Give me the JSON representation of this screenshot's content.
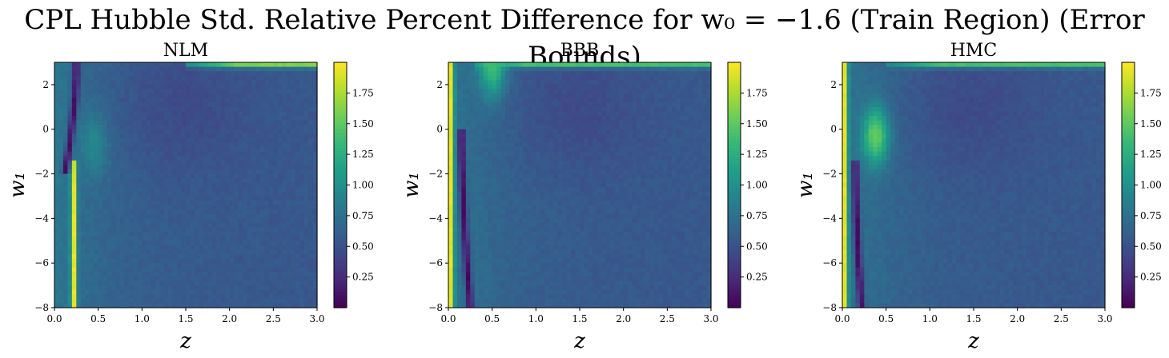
{
  "figure": {
    "title": "CPL Hubble Std. Relative Percent Difference for w₀ = −1.6 (Train Region) (Error Bounds)"
  },
  "chart_data": [
    {
      "type": "heatmap",
      "title": "NLM",
      "xlabel": "z",
      "ylabel": "w₁",
      "xlim": [
        0.0,
        3.0
      ],
      "ylim": [
        -8,
        3
      ],
      "xticks": [
        "0.0",
        "0.5",
        "1.0",
        "1.5",
        "2.0",
        "2.5",
        "3.0"
      ],
      "yticks": [
        "−8",
        "−6",
        "−4",
        "−2",
        "0",
        "2"
      ],
      "colormap": "viridis",
      "colorbar": {
        "range": [
          0.0,
          2.0
        ],
        "ticks": [
          "0.25",
          "0.50",
          "0.75",
          "1.00",
          "1.25",
          "1.50",
          "1.75"
        ]
      },
      "background_value": 0.55,
      "features": [
        {
          "kind": "band",
          "z_center": 0.22,
          "z_width": 0.05,
          "w1_from": -8,
          "w1_to": -1.5,
          "value": 1.95
        },
        {
          "kind": "arc",
          "z_at_w1_low": 0.12,
          "z_at_w1_high": 0.25,
          "w1_from": -2,
          "w1_to": 3,
          "value": 0.05
        },
        {
          "kind": "blob",
          "z": 0.45,
          "w1": -0.7,
          "value": 0.95
        },
        {
          "kind": "edge",
          "w1": 2.9,
          "z_from": 1.5,
          "z_to": 3.0,
          "value": 1.6
        }
      ]
    },
    {
      "type": "heatmap",
      "title": "BBB",
      "xlabel": "z",
      "ylabel": "w₁",
      "xlim": [
        0.0,
        3.0
      ],
      "ylim": [
        -8,
        3
      ],
      "xticks": [
        "0.0",
        "0.5",
        "1.0",
        "1.5",
        "2.0",
        "2.5",
        "3.0"
      ],
      "yticks": [
        "−8",
        "−6",
        "−4",
        "−2",
        "0",
        "2"
      ],
      "colormap": "viridis",
      "colorbar": {
        "range": [
          0.0,
          2.0
        ],
        "ticks": [
          "0.25",
          "0.50",
          "0.75",
          "1.00",
          "1.25",
          "1.50",
          "1.75"
        ]
      },
      "background_value": 0.55,
      "features": [
        {
          "kind": "band",
          "z_center": 0.03,
          "z_width": 0.05,
          "w1_from": -8,
          "w1_to": 3,
          "value": 1.95
        },
        {
          "kind": "arc",
          "z_at_w1_low": 0.25,
          "z_at_w1_high": 0.15,
          "w1_from": -8,
          "w1_to": 0,
          "value": 0.05
        },
        {
          "kind": "blob",
          "z": 0.5,
          "w1": 2.8,
          "value": 1.4
        },
        {
          "kind": "edge",
          "w1": 2.9,
          "z_from": 0.3,
          "z_to": 3.0,
          "value": 1.4
        }
      ]
    },
    {
      "type": "heatmap",
      "title": "HMC",
      "xlabel": "z",
      "ylabel": "w₁",
      "xlim": [
        0.0,
        3.0
      ],
      "ylim": [
        -8,
        3
      ],
      "xticks": [
        "0.0",
        "0.5",
        "1.0",
        "1.5",
        "2.0",
        "2.5",
        "3.0"
      ],
      "yticks": [
        "−8",
        "−6",
        "−4",
        "−2",
        "0",
        "2"
      ],
      "colormap": "viridis",
      "colorbar": {
        "range": [
          0.0,
          2.0
        ],
        "ticks": [
          "0.25",
          "0.50",
          "0.75",
          "1.00",
          "1.25",
          "1.50",
          "1.75"
        ]
      },
      "background_value": 0.55,
      "features": [
        {
          "kind": "band",
          "z_center": 0.03,
          "z_width": 0.05,
          "w1_from": -8,
          "w1_to": 3,
          "value": 1.95
        },
        {
          "kind": "arc",
          "z_at_w1_low": 0.22,
          "z_at_w1_high": 0.15,
          "w1_from": -8,
          "w1_to": -1.5,
          "value": 0.05
        },
        {
          "kind": "blob",
          "z": 0.38,
          "w1": -0.3,
          "value": 1.55
        },
        {
          "kind": "edge",
          "w1": 2.9,
          "z_from": 0.5,
          "z_to": 3.0,
          "value": 1.4
        }
      ]
    }
  ]
}
